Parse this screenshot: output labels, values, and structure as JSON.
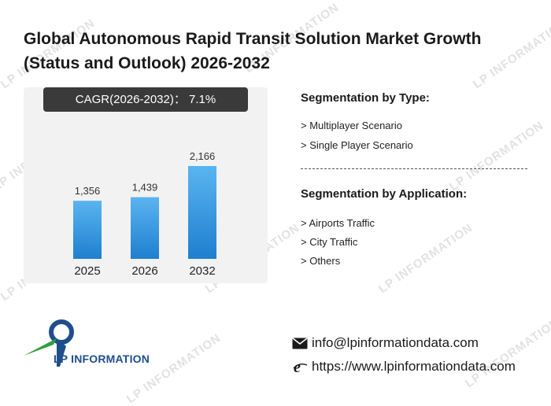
{
  "header": {
    "title": "Global Autonomous Rapid Transit Solution Market Growth (Status and Outlook) 2026-2032"
  },
  "cagr": {
    "label": "CAGR(2026-2032)： 7.1%"
  },
  "chart_data": {
    "type": "bar",
    "title": "",
    "xlabel": "",
    "ylabel": "",
    "categories": [
      "2025",
      "2026",
      "2032"
    ],
    "values": [
      1356,
      1439,
      2166
    ],
    "data_labels": [
      "1,356",
      "1,439",
      "2,166"
    ],
    "ylim": [
      0,
      2400
    ],
    "grid": false,
    "legend": "none",
    "bar_color_top": "#5bb4f0",
    "bar_color_bottom": "#1e7fd0"
  },
  "segmentation": {
    "type_heading": "Segmentation by Type:",
    "types": [
      "> Multiplayer Scenario",
      "> Single Player Scenario"
    ],
    "application_heading": "Segmentation by Application:",
    "applications": [
      "> Airports Traffic",
      "> City Traffic",
      "> Others"
    ]
  },
  "brand": {
    "logo_text": "LP INFORMATION",
    "watermark_text": "LP INFORMATION",
    "primary_color": "#1f4e8c",
    "accent_color": "#2e9e3e"
  },
  "contact": {
    "email": "info@lpinformationdata.com",
    "email_icon": "envelope-icon",
    "website": "https://www.lpinformationdata.com",
    "website_icon": "browser-e-icon"
  }
}
